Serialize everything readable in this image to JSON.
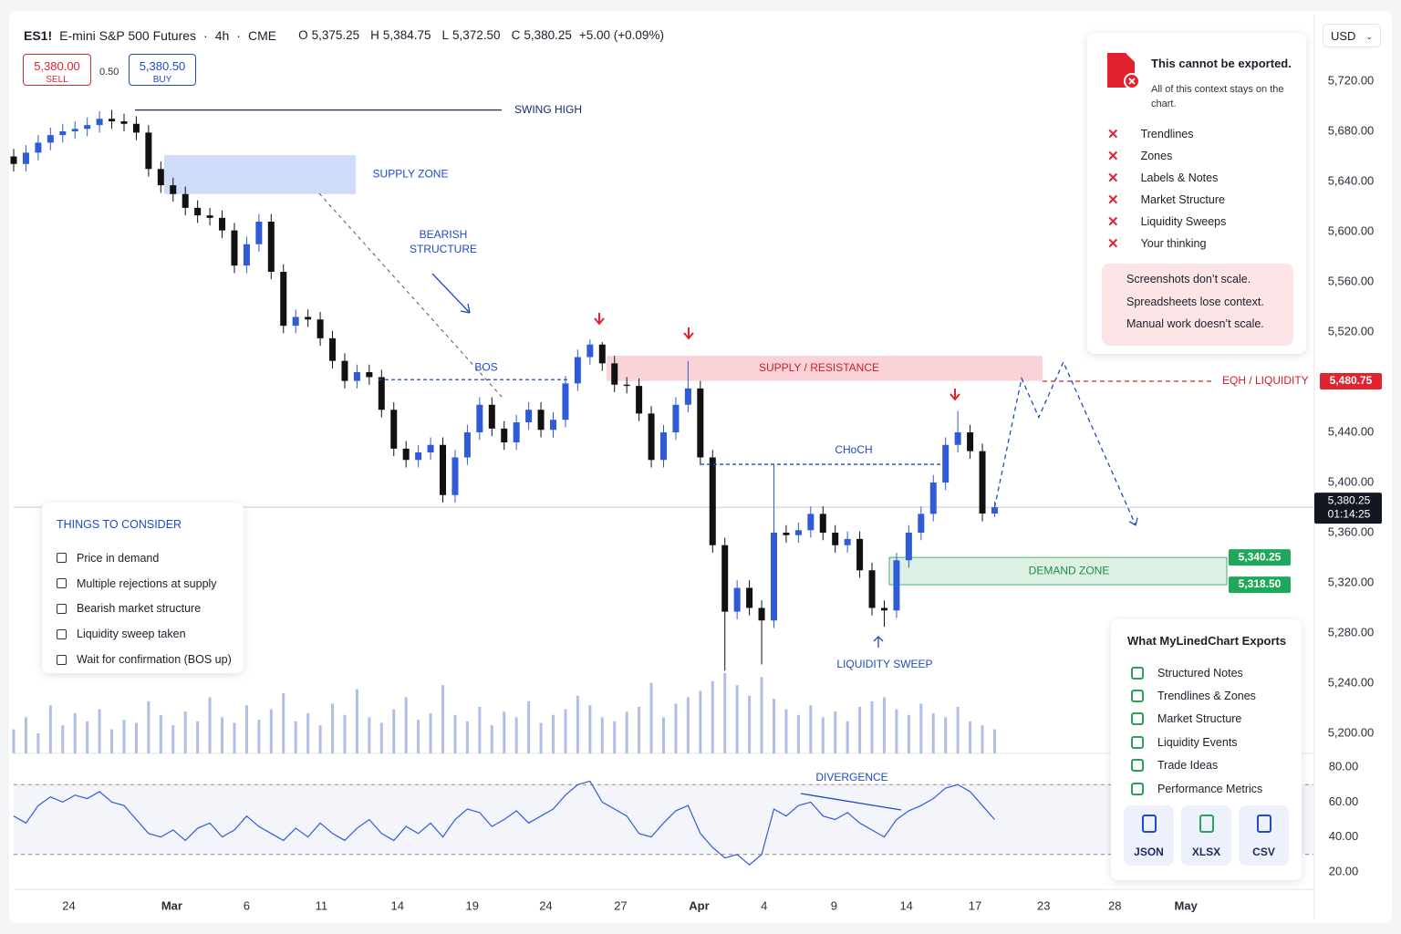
{
  "header": {
    "symbol": "ES1!",
    "name": "E-mini S&P 500 Futures",
    "interval": "4h",
    "exchange": "CME",
    "ohlc": [
      {
        "key": "O",
        "value": "5,375.25"
      },
      {
        "key": "H",
        "value": "5,384.75"
      },
      {
        "key": "L",
        "value": "5,372.50"
      },
      {
        "key": "C",
        "value": "5,380.25"
      }
    ],
    "change": "+5.00 (+0.09%)",
    "sell": {
      "price": "5,380.00",
      "label": "SELL"
    },
    "spread": "0.50",
    "buy": {
      "price": "5,380.50",
      "label": "BUY"
    },
    "currency": "USD"
  },
  "export_warning": {
    "title": "This cannot be exported.",
    "subtitle": "All of this context stays on the chart.",
    "items": [
      "Trendlines",
      "Zones",
      "Labels & Notes",
      "Market Structure",
      "Liquidity Sweeps",
      "Your thinking"
    ],
    "notes": [
      "Screenshots don’t scale.",
      "Spreadsheets lose context.",
      "Manual work doesn’t scale."
    ]
  },
  "checklist": {
    "title": "THINGS TO CONSIDER",
    "items": [
      "Price in demand",
      "Multiple rejections at supply",
      "Bearish market structure",
      "Liquidity sweep taken",
      "Wait for confirmation (BOS up)"
    ]
  },
  "exports": {
    "title": "What MyLinedChart Exports",
    "items": [
      "Structured Notes",
      "Trendlines & Zones",
      "Market Structure",
      "Liquidity Events",
      "Trade Ideas",
      "Performance Metrics"
    ],
    "buttons": [
      "JSON",
      "XLSX",
      "CSV"
    ]
  },
  "chart_data": [
    {
      "type": "candlestick",
      "up_color": "#2f5bd8",
      "down_color": "#111111",
      "open": [
        5660,
        5654,
        5663,
        5671,
        5677,
        5680,
        5682,
        5685,
        5690,
        5688,
        5686,
        5679,
        5650,
        5637,
        5630,
        5619,
        5613,
        5611,
        5601,
        5573,
        5590,
        5608,
        5568,
        5525,
        5532,
        5530,
        5515,
        5497,
        5481,
        5488,
        5484,
        5458,
        5427,
        5418,
        5424,
        5430,
        5390,
        5420,
        5440,
        5462,
        5443,
        5432,
        5448,
        5458,
        5442,
        5450,
        5479,
        5500,
        5510,
        5495,
        5478,
        5477,
        5455,
        5418,
        5440,
        5462,
        5475,
        5420,
        5350,
        5297,
        5316,
        5300,
        5290,
        5360,
        5358,
        5362,
        5375,
        5360,
        5350,
        5355,
        5330,
        5300,
        5298,
        5338,
        5360,
        5375,
        5400,
        5430,
        5440,
        5425,
        5375.25
      ],
      "high": [
        5666,
        5669,
        5677,
        5683,
        5686,
        5688,
        5691,
        5696,
        5697,
        5694,
        5692,
        5685,
        5656,
        5643,
        5636,
        5625,
        5619,
        5617,
        5607,
        5596,
        5614,
        5614,
        5574,
        5538,
        5538,
        5536,
        5521,
        5503,
        5494,
        5494,
        5490,
        5464,
        5433,
        5430,
        5436,
        5436,
        5426,
        5446,
        5468,
        5468,
        5449,
        5454,
        5464,
        5464,
        5456,
        5485,
        5506,
        5514,
        5512,
        5501,
        5484,
        5483,
        5461,
        5446,
        5468,
        5497,
        5481,
        5426,
        5356,
        5322,
        5322,
        5306,
        5414.5,
        5366,
        5368,
        5381,
        5381,
        5366,
        5361,
        5361,
        5336,
        5306,
        5344,
        5366,
        5381,
        5406,
        5436,
        5457,
        5446,
        5431,
        5384.75
      ],
      "low": [
        5648,
        5648,
        5657,
        5665,
        5671,
        5674,
        5676,
        5679,
        5682,
        5680,
        5673,
        5644,
        5631,
        5624,
        5613,
        5607,
        5605,
        5595,
        5567,
        5567,
        5584,
        5562,
        5519,
        5519,
        5524,
        5509,
        5491,
        5475,
        5475,
        5478,
        5452,
        5421,
        5412,
        5412,
        5418,
        5384,
        5384,
        5414,
        5434,
        5437,
        5426,
        5426,
        5442,
        5436,
        5436,
        5444,
        5473,
        5494,
        5489,
        5472,
        5471,
        5449,
        5412,
        5412,
        5434,
        5456,
        5414,
        5344,
        5250,
        5291,
        5294,
        5255,
        5284,
        5352,
        5352,
        5356,
        5354,
        5344,
        5344,
        5324,
        5294,
        5285,
        5292,
        5332,
        5354,
        5369,
        5394,
        5424,
        5419,
        5369,
        5372.5
      ],
      "close": [
        5654,
        5663,
        5671,
        5677,
        5680,
        5682,
        5685,
        5690,
        5688,
        5686,
        5679,
        5650,
        5637,
        5630,
        5619,
        5613,
        5611,
        5601,
        5573,
        5590,
        5608,
        5568,
        5525,
        5532,
        5530,
        5515,
        5497,
        5481,
        5488,
        5484,
        5458,
        5427,
        5418,
        5424,
        5430,
        5390,
        5420,
        5440,
        5462,
        5443,
        5432,
        5448,
        5458,
        5442,
        5450,
        5479,
        5500,
        5510,
        5495,
        5478,
        5477,
        5455,
        5418,
        5440,
        5462,
        5475,
        5420,
        5350,
        5297,
        5316,
        5300,
        5290,
        5360,
        5358,
        5362,
        5375,
        5360,
        5350,
        5355,
        5330,
        5300,
        5298,
        5338,
        5360,
        5375,
        5400,
        5430,
        5440,
        5425,
        5375.25,
        5380.25
      ],
      "xlim": [
        0,
        106
      ],
      "xticks": [
        {
          "value": 4.5,
          "label": "24"
        },
        {
          "value": 12.9,
          "label": "Mar"
        },
        {
          "value": 19,
          "label": "6"
        },
        {
          "value": 25.1,
          "label": "11"
        },
        {
          "value": 31.3,
          "label": "14"
        },
        {
          "value": 37.4,
          "label": "19"
        },
        {
          "value": 43.4,
          "label": "24"
        },
        {
          "value": 49.5,
          "label": "27"
        },
        {
          "value": 55.9,
          "label": "Apr"
        },
        {
          "value": 61.2,
          "label": "4"
        },
        {
          "value": 66.9,
          "label": "9"
        },
        {
          "value": 72.8,
          "label": "14"
        },
        {
          "value": 78.4,
          "label": "17"
        },
        {
          "value": 84,
          "label": "23"
        },
        {
          "value": 89.8,
          "label": "28"
        },
        {
          "value": 95.6,
          "label": "May"
        }
      ],
      "ylim": [
        5180,
        5740
      ],
      "yticks": [
        {
          "value": 5200,
          "label": "5,200.00"
        },
        {
          "value": 5240,
          "label": "5,240.00"
        },
        {
          "value": 5280,
          "label": "5,280.00"
        },
        {
          "value": 5320,
          "label": "5,320.00"
        },
        {
          "value": 5360,
          "label": "5,360.00"
        },
        {
          "value": 5400,
          "label": "5,400.00"
        },
        {
          "value": 5440,
          "label": "5,440.00"
        },
        {
          "value": 5480,
          "label": "5,480.00"
        },
        {
          "value": 5520,
          "label": "5,520.00"
        },
        {
          "value": 5560,
          "label": "5,560.00"
        },
        {
          "value": 5600,
          "label": "5,600.00"
        },
        {
          "value": 5640,
          "label": "5,640.00"
        },
        {
          "value": 5680,
          "label": "5,680.00"
        },
        {
          "value": 5720,
          "label": "5,720.00"
        }
      ],
      "current_price": {
        "value": 5380.25,
        "label": "5,380.25",
        "timer": "01:14:25"
      },
      "swing_high": {
        "name": "SWING HIGH",
        "value": 5697
      },
      "bos": {
        "name": "BOS",
        "value": 5482
      },
      "choch": {
        "name": "CHoCH",
        "value": 5414.5
      },
      "eqh": {
        "name": "EQH / LIQUIDITY",
        "value": 5480.75,
        "label": "5,480.75"
      },
      "supply_zone": {
        "name": "SUPPLY ZONE",
        "range": [
          5630,
          5661
        ]
      },
      "resistance_zone": {
        "name": "SUPPLY / RESISTANCE",
        "range": [
          5481,
          5501
        ]
      },
      "demand_zone": {
        "name": "DEMAND ZONE",
        "range": [
          5318.5,
          5340.25
        ],
        "labels": [
          "5,318.50",
          "5,340.25"
        ]
      },
      "bearish_label": [
        "BEARISH",
        "STRUCTURE"
      ],
      "sweep_label": "LIQUIDITY SWEEP",
      "projection": {
        "x": [
          80,
          82.2,
          83.6,
          85.6,
          91.5
        ],
        "y": [
          5380.25,
          5483,
          5452,
          5496,
          5366
        ]
      }
    },
    {
      "type": "bar",
      "color": "#8ea2dc",
      "values": [
        30,
        45,
        25,
        60,
        35,
        50,
        40,
        55,
        30,
        42,
        38,
        65,
        48,
        35,
        52,
        40,
        70,
        45,
        38,
        60,
        42,
        55,
        75,
        40,
        50,
        35,
        62,
        48,
        80,
        45,
        38,
        55,
        70,
        42,
        50,
        85,
        48,
        40,
        58,
        35,
        52,
        45,
        65,
        38,
        48,
        55,
        72,
        60,
        45,
        40,
        52,
        58,
        88,
        45,
        62,
        70,
        78,
        90,
        100,
        85,
        72,
        95,
        68,
        55,
        48,
        60,
        45,
        52,
        40,
        58,
        65,
        70,
        55,
        48,
        62,
        50,
        45,
        58,
        40,
        35,
        30
      ]
    },
    {
      "type": "line",
      "color": "#2f5bd8",
      "values": [
        52,
        48,
        58,
        63,
        60,
        64,
        62,
        66,
        60,
        58,
        50,
        42,
        40,
        44,
        38,
        45,
        48,
        40,
        44,
        52,
        46,
        42,
        38,
        45,
        40,
        48,
        42,
        38,
        45,
        50,
        42,
        38,
        46,
        42,
        48,
        40,
        50,
        56,
        54,
        46,
        50,
        55,
        48,
        52,
        56,
        64,
        70,
        72,
        60,
        56,
        52,
        42,
        40,
        48,
        55,
        58,
        42,
        34,
        28,
        30,
        24,
        30,
        56,
        52,
        58,
        60,
        52,
        50,
        54,
        48,
        44,
        40,
        50,
        55,
        58,
        62,
        68,
        70,
        66,
        58,
        50
      ],
      "ylim": [
        10,
        90
      ],
      "yticks": [
        {
          "value": 20,
          "label": "20.00"
        },
        {
          "value": 40,
          "label": "40.00"
        },
        {
          "value": 60,
          "label": "60.00"
        },
        {
          "value": 80,
          "label": "80.00"
        }
      ],
      "levels": [
        30,
        70
      ],
      "annotation": "DIVERGENCE"
    }
  ]
}
